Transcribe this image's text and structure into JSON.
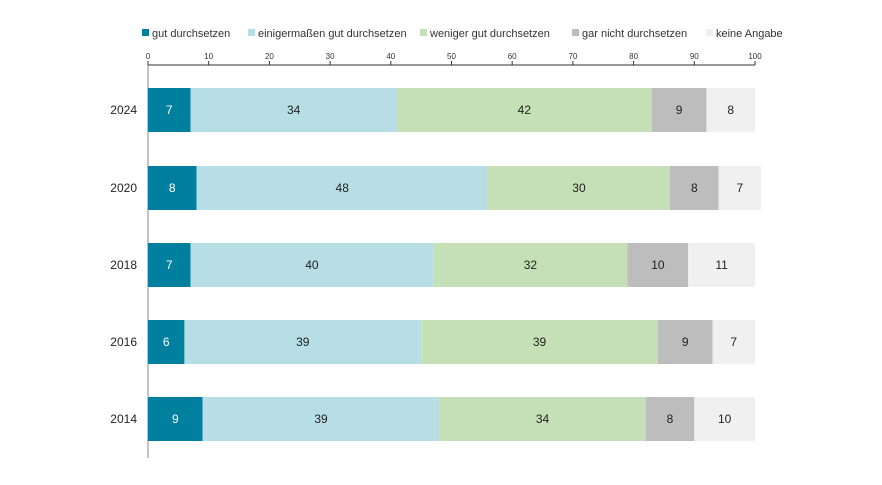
{
  "chart_data": {
    "type": "bar",
    "orientation": "horizontal",
    "stacked": true,
    "title": "",
    "xlabel": "",
    "ylabel": "",
    "xlim": [
      0,
      100
    ],
    "x_ticks": [
      0,
      10,
      20,
      30,
      40,
      50,
      60,
      70,
      80,
      90,
      100
    ],
    "grid": false,
    "legend_position": "top",
    "categories": [
      "2024",
      "2020",
      "2018",
      "2016",
      "2014"
    ],
    "series": [
      {
        "name": "gut durchsetzen",
        "color": "#00809e",
        "label_color": "#ffffff",
        "values": [
          7,
          8,
          7,
          6,
          9
        ]
      },
      {
        "name": "einigermaßen gut durchsetzen",
        "color": "#b7dde5",
        "label_color": "#222222",
        "values": [
          34,
          48,
          40,
          39,
          39
        ]
      },
      {
        "name": "weniger gut durchsetzen",
        "color": "#c5e0b6",
        "label_color": "#222222",
        "values": [
          42,
          30,
          32,
          39,
          34
        ]
      },
      {
        "name": "gar nicht durchsetzen",
        "color": "#bdbdbd",
        "label_color": "#222222",
        "values": [
          9,
          8,
          10,
          9,
          8
        ]
      },
      {
        "name": "keine Angabe",
        "color": "#f0f0f0",
        "label_color": "#222222",
        "values": [
          8,
          7,
          11,
          7,
          10
        ]
      }
    ]
  }
}
